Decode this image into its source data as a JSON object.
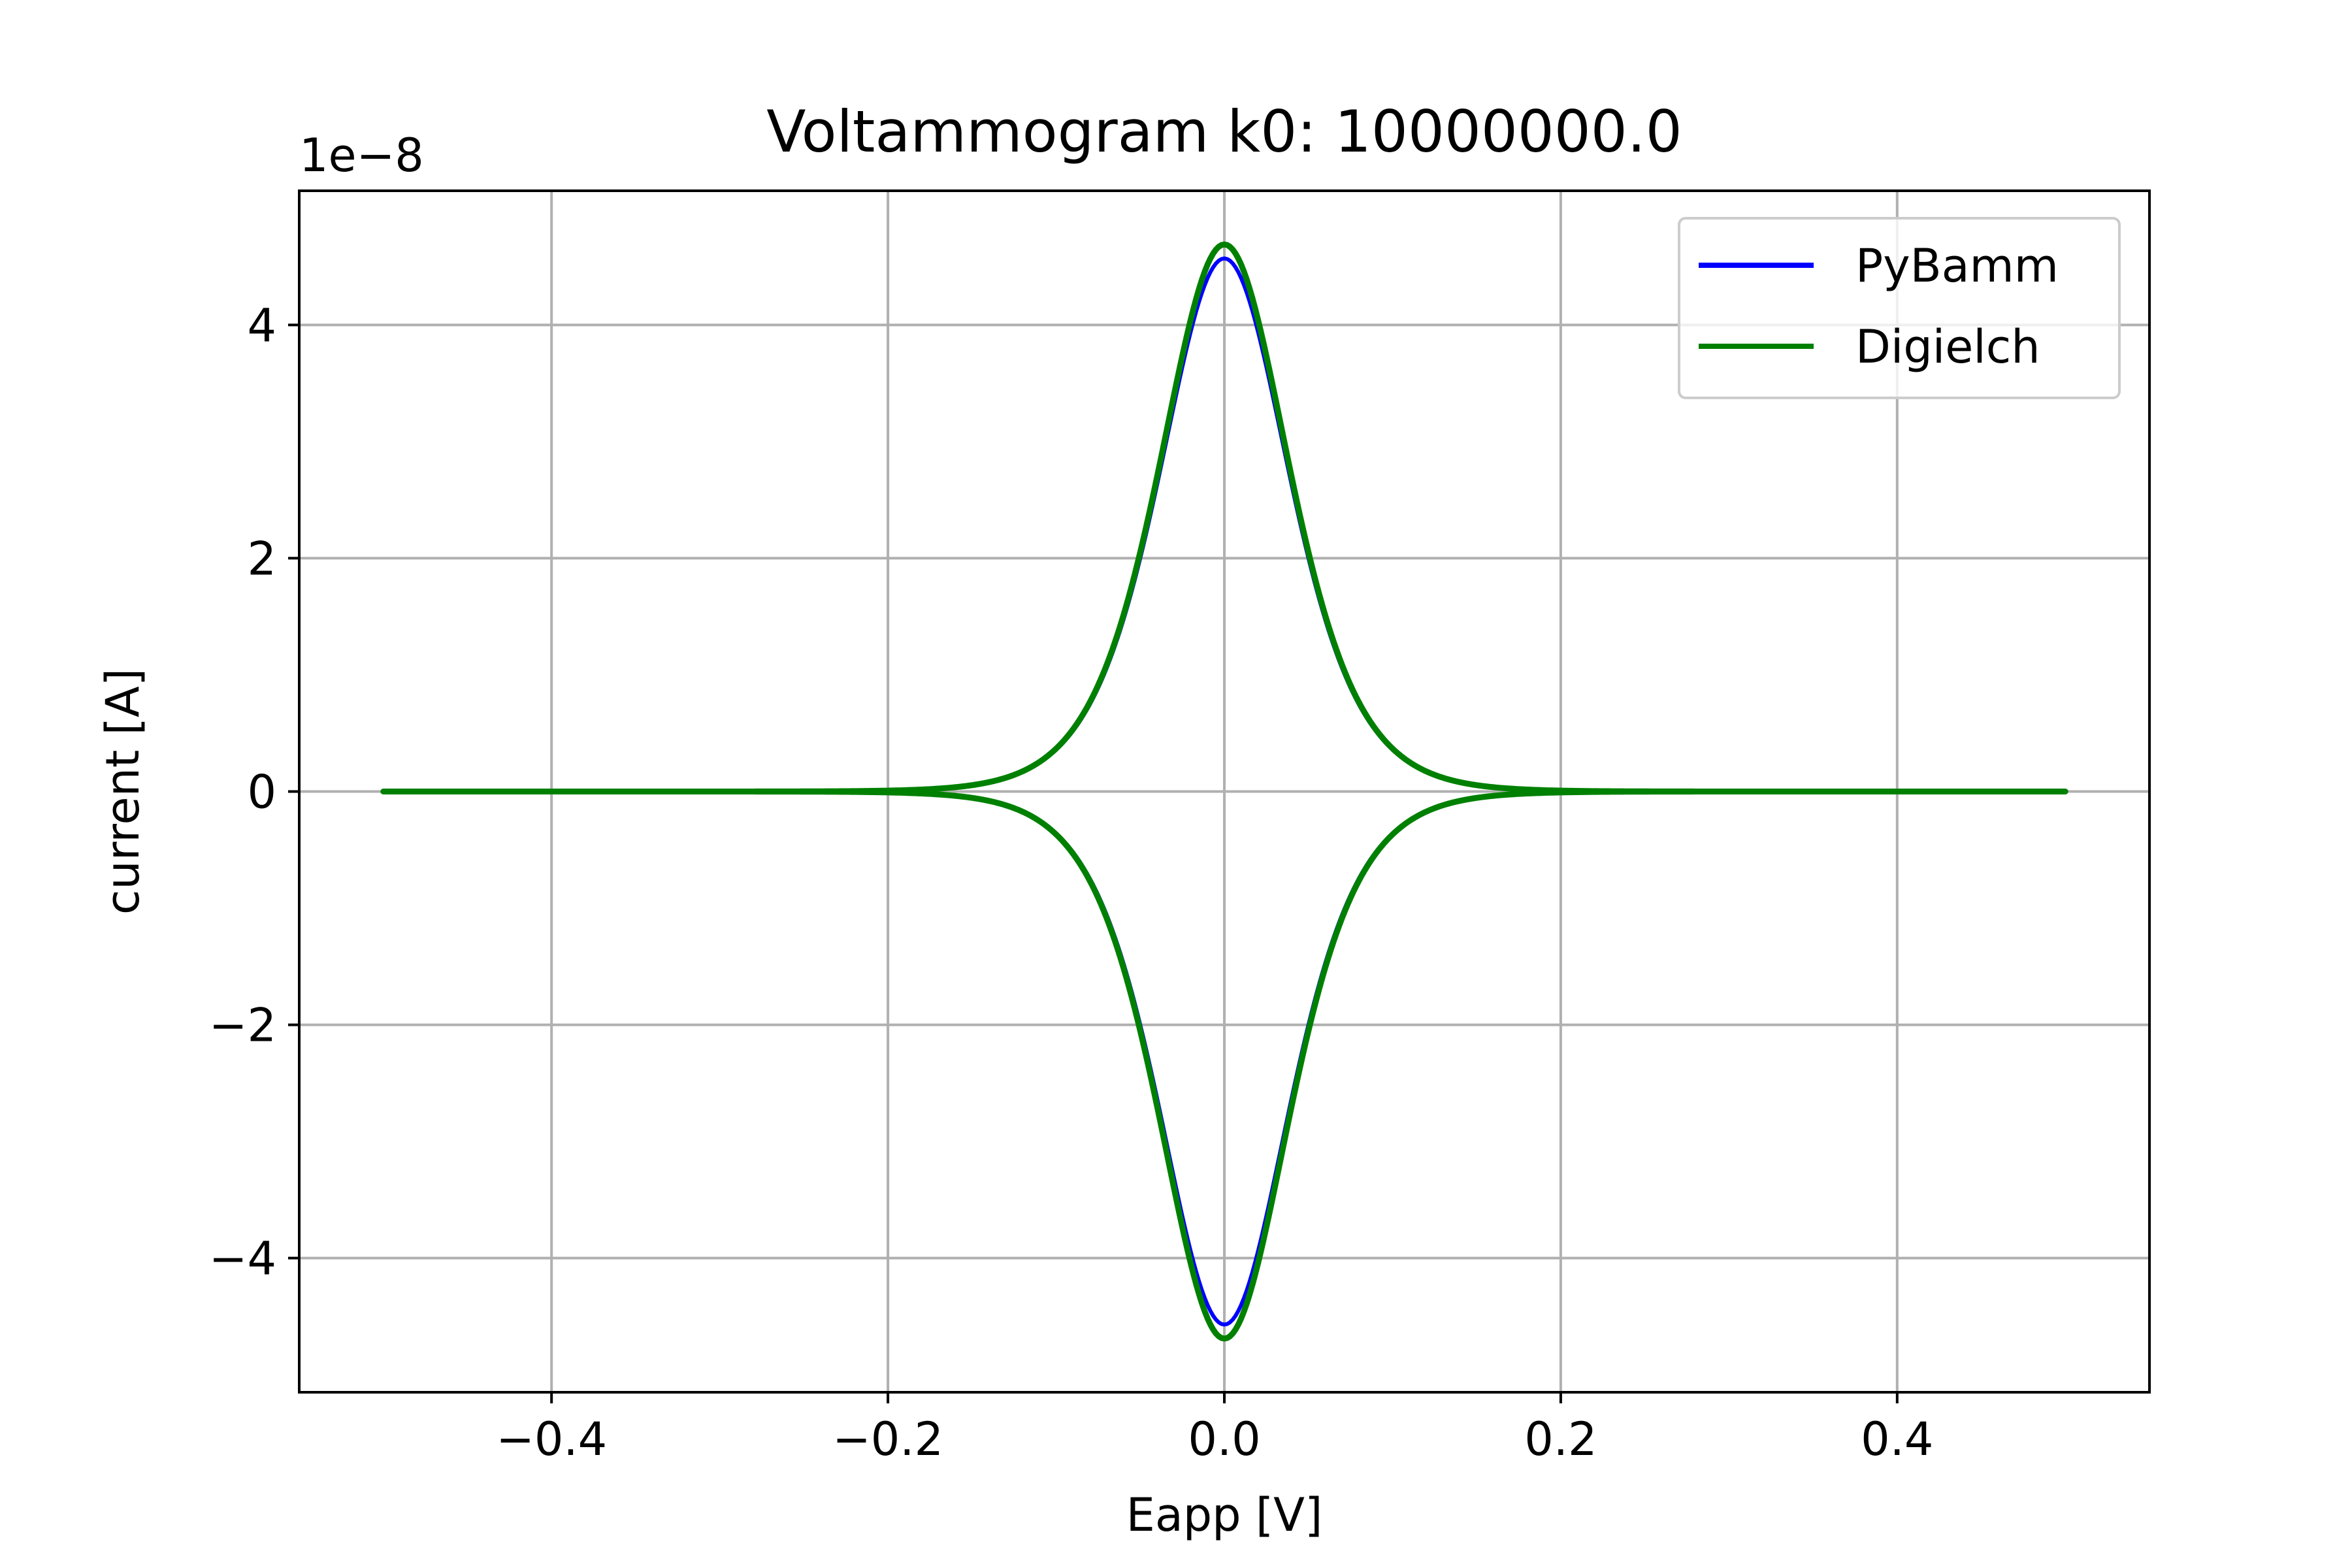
{
  "chart_data": {
    "type": "line",
    "title": "Voltammogram k0: 10000000.0",
    "xlabel": "Eapp [V]",
    "ylabel": "current [A]",
    "y_offset_label": "1e−8",
    "xlim": [
      -0.55,
      0.55
    ],
    "ylim": [
      -5.15e-08,
      5.15e-08
    ],
    "x_ticks": [
      -0.4,
      -0.2,
      0.0,
      0.2,
      0.4
    ],
    "x_tick_labels": [
      "−0.4",
      "−0.2",
      "0.0",
      "0.2",
      "0.4"
    ],
    "y_ticks": [
      -4e-08,
      -2e-08,
      0,
      2e-08,
      4e-08
    ],
    "y_tick_labels": [
      "−4",
      "−2",
      "0",
      "2",
      "4"
    ],
    "grid": true,
    "legend_position": "top-right",
    "series": [
      {
        "name": "PyBamm",
        "color": "#0000ff",
        "peak_current": 4.57e-08,
        "peak_potential": 0.0,
        "x": [
          -0.5,
          -0.3,
          -0.2,
          -0.16,
          -0.12,
          -0.1,
          -0.08,
          -0.06,
          -0.04,
          -0.02,
          0.0,
          0.02,
          0.04,
          0.06,
          0.08,
          0.1,
          0.12,
          0.16,
          0.2,
          0.3,
          0.5
        ],
        "y": [
          0,
          0,
          1e-10,
          6e-10,
          2.5e-09,
          5e-09,
          1e-08,
          1.85e-08,
          3e-08,
          4.15e-08,
          4.57e-08,
          4.15e-08,
          3e-08,
          1.85e-08,
          1e-08,
          5e-09,
          2.5e-09,
          6e-10,
          1e-10,
          0,
          0
        ]
      },
      {
        "name": "Digielch",
        "color": "#008000",
        "peak_current": 4.69e-08,
        "peak_potential": 0.0,
        "x": [
          -0.5,
          -0.3,
          -0.2,
          -0.16,
          -0.12,
          -0.1,
          -0.08,
          -0.06,
          -0.04,
          -0.02,
          0.0,
          0.02,
          0.04,
          0.06,
          0.08,
          0.1,
          0.12,
          0.16,
          0.2,
          0.3,
          0.5
        ],
        "y": [
          0,
          0,
          1e-10,
          6e-10,
          2.6e-09,
          5.2e-09,
          1.03e-08,
          1.9e-08,
          3.08e-08,
          4.26e-08,
          4.69e-08,
          4.26e-08,
          3.08e-08,
          1.9e-08,
          1.03e-08,
          5.2e-09,
          2.6e-09,
          6e-10,
          1e-10,
          0,
          0
        ]
      }
    ]
  }
}
